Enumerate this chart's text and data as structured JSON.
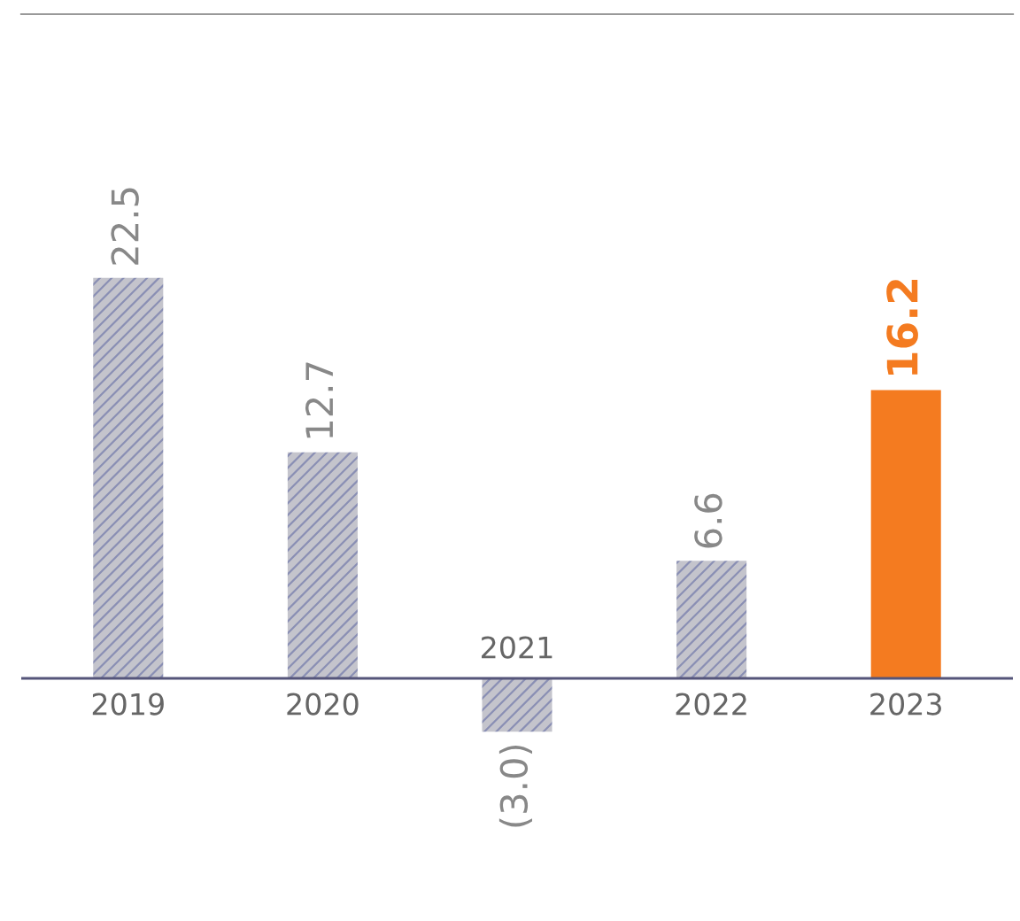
{
  "chart_data": {
    "type": "bar",
    "categories": [
      "2019",
      "2020",
      "2021",
      "2022",
      "2023"
    ],
    "values": [
      22.5,
      12.7,
      -3.0,
      6.6,
      16.2
    ],
    "value_labels": [
      "22.5",
      "12.7",
      "(3.0)",
      "6.6",
      "16.2"
    ],
    "colors": [
      "#c4c4cc",
      "#c4c4cc",
      "#c4c4cc",
      "#c4c4cc",
      "#f47b20"
    ]
  }
}
